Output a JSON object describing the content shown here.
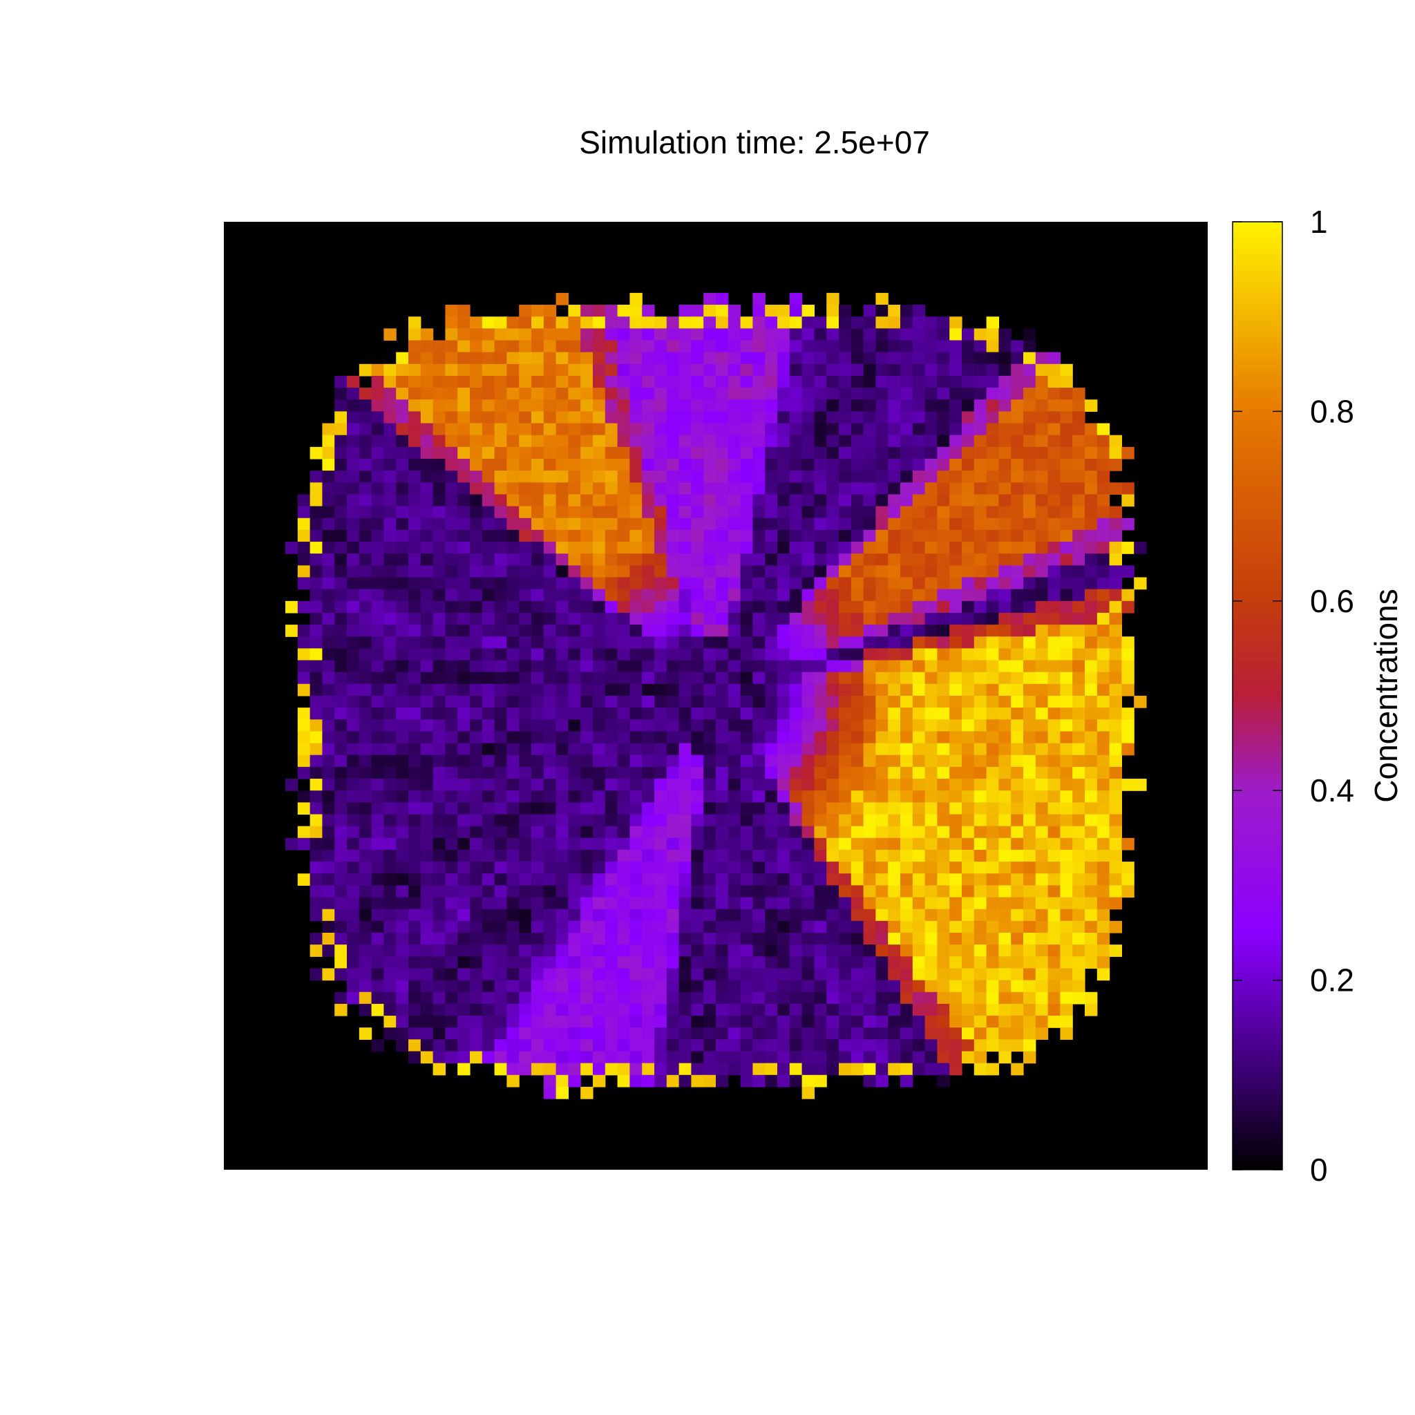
{
  "chart_data": {
    "type": "heatmap",
    "title": "Simulation time: 2.5e+07",
    "xlabel": "",
    "ylabel": "",
    "grid": false,
    "background_color": "#000000",
    "colormap": {
      "name": "gnuplot-hot-purple",
      "stops": [
        {
          "value": 0.0,
          "color": "#000000"
        },
        {
          "value": 0.1,
          "color": "#3a0070"
        },
        {
          "value": 0.25,
          "color": "#8a00ff"
        },
        {
          "value": 0.4,
          "color": "#9d1cc8"
        },
        {
          "value": 0.5,
          "color": "#b81e3a"
        },
        {
          "value": 0.6,
          "color": "#c43c0c"
        },
        {
          "value": 0.8,
          "color": "#e67a00"
        },
        {
          "value": 1.0,
          "color": "#fff200"
        }
      ]
    },
    "colorbar": {
      "label": "Concentrations",
      "range": [
        0,
        1
      ],
      "ticks": [
        {
          "value": 0,
          "label": "0"
        },
        {
          "value": 0.2,
          "label": "0.2"
        },
        {
          "value": 0.4,
          "label": "0.4"
        },
        {
          "value": 0.6,
          "label": "0.6"
        },
        {
          "value": 0.8,
          "label": "0.8"
        },
        {
          "value": 1,
          "label": "1"
        }
      ],
      "placement": "right"
    },
    "grid_size": [
      80,
      80
    ],
    "field_description": {
      "domain_shape": "rounded square colony, ~68x68 cells centred in an 80x80 grid; outside is 0",
      "center_cell": [
        40,
        40
      ],
      "high_concentration_sectors": [
        {
          "angle_from_deg": 110,
          "angle_to_deg": 135,
          "peak": 0.85,
          "edge_peak": 1.0
        },
        {
          "angle_from_deg": 25,
          "angle_to_deg": 45,
          "peak": 0.75,
          "edge_peak": 1.0
        },
        {
          "angle_from_deg": -55,
          "angle_to_deg": 12,
          "peak": 0.97,
          "edge_peak": 1.0
        }
      ],
      "medium_sectors": [
        {
          "angle_from_deg": 80,
          "angle_to_deg": 105,
          "peak": 0.35
        },
        {
          "angle_from_deg": -120,
          "angle_to_deg": -100,
          "peak": 0.32
        }
      ],
      "base_level": 0.12
    }
  }
}
